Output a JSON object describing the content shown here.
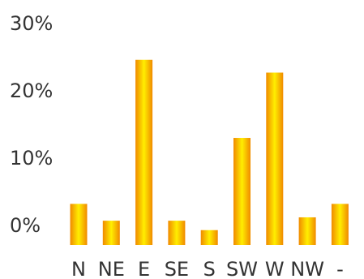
{
  "chart_data": {
    "type": "bar",
    "categories": [
      "N",
      "NE",
      "E",
      "SE",
      "S",
      "SW",
      "W",
      "NW",
      "-"
    ],
    "values": [
      6.1,
      3.6,
      27.5,
      3.6,
      2.2,
      15.9,
      25.6,
      4.1,
      6.1
    ],
    "y_ticks": [
      "0%",
      "10%",
      "20%",
      "30%"
    ],
    "y_tick_values": [
      0,
      10,
      20,
      30
    ],
    "ylim": [
      0,
      30
    ],
    "grid": false,
    "legend": "none",
    "bar_colors": {
      "edge": "#f08a00",
      "center": "#ffee00"
    }
  }
}
